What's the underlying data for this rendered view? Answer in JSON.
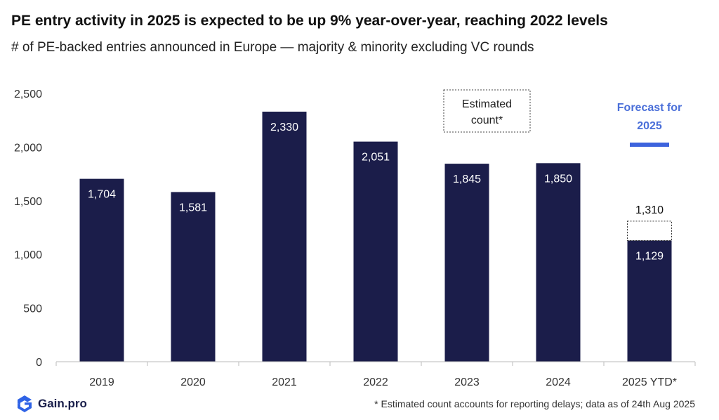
{
  "title": "PE entry activity in 2025 is expected to be up 9% year-over-year, reaching 2022 levels",
  "subtitle": "# of PE-backed entries announced in Europe — majority & minority excluding VC rounds",
  "footnote": "* Estimated count accounts for reporting delays; data as of 24th Aug 2025",
  "brand": {
    "name": "Gain.pro",
    "logo_icon": "gain-pro-logo-icon"
  },
  "colors": {
    "bar": "#1b1d4a",
    "forecast_text": "#4a6fd9",
    "forecast_line": "#3d63dd",
    "axis": "#bbbbbb"
  },
  "chart_data": {
    "type": "bar",
    "categories": [
      "2019",
      "2020",
      "2021",
      "2022",
      "2023",
      "2024",
      "2025 YTD*"
    ],
    "values": [
      1704,
      1581,
      2330,
      2051,
      1845,
      1850,
      1129
    ],
    "labels": [
      "1,704",
      "1,581",
      "2,330",
      "2,051",
      "1,845",
      "1,850",
      "1,129"
    ],
    "estimate": {
      "category": "2025 YTD*",
      "value": 1310,
      "label": "1,310"
    },
    "yticks": [
      0,
      500,
      1000,
      1500,
      2000,
      2500
    ],
    "ytick_labels": [
      "0",
      "500",
      "1,000",
      "1,500",
      "2,000",
      "2,500"
    ],
    "ylim": [
      0,
      2500
    ],
    "grid": false,
    "annotations": {
      "estimated_box": [
        "Estimated",
        "count*"
      ],
      "forecast": [
        "Forecast for",
        "2025"
      ]
    }
  }
}
